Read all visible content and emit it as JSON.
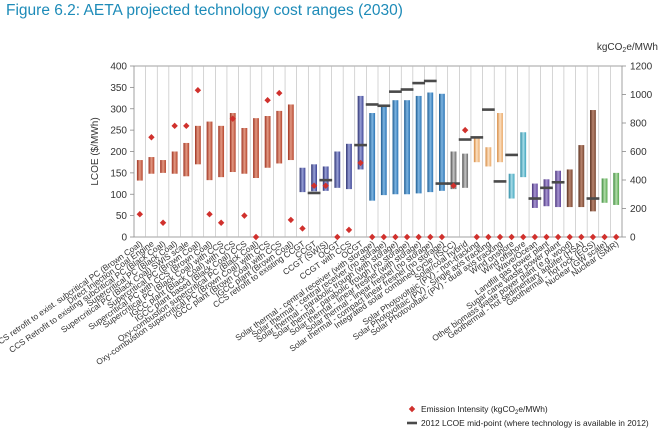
{
  "chart_data": {
    "type": "bar",
    "title": "Figure 6.2: AETA projected technology cost ranges (2030)",
    "ylabel_left": "LCOE ($/MWh)",
    "ylabel_right_parts": [
      "kgCO",
      "2",
      "e/MWh"
    ],
    "ylim_left": [
      0,
      400
    ],
    "ylim_right": [
      0,
      1200
    ],
    "yticks_left": [
      "0",
      "50",
      "100",
      "150",
      "200",
      "250",
      "300",
      "350",
      "400"
    ],
    "yticks_right": [
      "0",
      "200",
      "400",
      "600",
      "800",
      "1000",
      "1200"
    ],
    "grid": "vertical lines between categories",
    "legend_position": "bottom-center",
    "legend": {
      "emission_parts": [
        "Emission Intensity (kgCO",
        "2",
        "e/MWh)"
      ],
      "midpoint": "2012 LCOE mid-point (where technology is available in 2012)"
    },
    "categories": [
      "CCS retrofit to exist. subcritical PC (Brown Coal)",
      "Direct Injection Coal Engine",
      "CCS Retrofit to existing subcritical PC (Black Coal)",
      "Supercritical PC (Black Coal)",
      "Supercritical PC (Black Coal) SWIS scale",
      "Supercritical PC (Brown Coal)",
      "Supercritical PC with CCS (Brown Coal)",
      "Supercritical PC (Black Coal) with CCS",
      "IGCC plant (Black Coal) with CCS",
      "IGCC plant based (Black Coal) CCS",
      "Oxy-combustion supercritical PC (Black Coal)",
      "Oxy-combustion supercritical PC (Brown Coal) with CCS",
      "IGCC plant (Brown Coal) with CCS",
      "IGCC plant (Brown Coal)",
      "CCS retrofit to existing CCGT",
      "CCGT",
      "CCGT (SWIS)",
      "OCGT",
      "CCGT with CCS",
      "OCGT ",
      "Solar thermal - central receiver (with storage)",
      "Solar thermal - central receiver (no storage)",
      "Solar thermal - parabolic trough (with storage)",
      "Solar thermal - parabolic trough (no storage)",
      "Solar thermal - linear fresnel (with storage)",
      "Solar thermal - linear fresnel (no storage)",
      "Solar thermal - compact linear fresnel (no storage)",
      "Integrated solar combined cycle (ISCC)",
      "Solar/coal hybrid",
      "Solar Photovoltaic (PV) - non-tracking",
      "Solar Photovoltaic (PV) - Single axis tracking",
      "Solar Photovoltaic (PV) - dual axis tracking",
      "Wind onshore",
      "Wind offshore",
      "Wave/Ocean",
      "Landfill gas power plant",
      "Sugar cane waste power plant",
      "Other biomass waste power plant (e.g. wood)",
      "Geothermal - hot sedimentary aquifer (HSA)",
      "Geothermal - hot rock (EGS)",
      "Nuclear (GW scale)",
      "Nuclear (SMR)"
    ],
    "series": [
      {
        "name": "LCOE range ($/MWh)",
        "low": [
          132,
          148,
          150,
          148,
          142,
          170,
          133,
          140,
          152,
          148,
          138,
          162,
          172,
          180,
          105,
          107,
          108,
          115,
          112,
          158,
          85,
          98,
          100,
          100,
          102,
          105,
          108,
          112,
          115,
          175,
          165,
          175,
          90,
          140,
          68,
          72,
          70,
          70,
          70,
          60,
          80,
          75
        ],
        "high": [
          180,
          187,
          180,
          200,
          220,
          260,
          270,
          260,
          290,
          255,
          278,
          283,
          295,
          310,
          162,
          170,
          165,
          200,
          218,
          330,
          290,
          305,
          320,
          320,
          330,
          338,
          335,
          200,
          195,
          235,
          210,
          290,
          148,
          245,
          125,
          135,
          155,
          158,
          215,
          297,
          137,
          150
        ]
      },
      {
        "name": "Emission Intensity (kgCO2e/MWh)",
        "values": [
          160,
          700,
          100,
          780,
          780,
          1030,
          160,
          100,
          830,
          150,
          0,
          960,
          1010,
          120,
          60,
          360,
          360,
          0,
          50,
          520,
          0,
          0,
          0,
          0,
          0,
          0,
          0,
          360,
          750,
          0,
          0,
          0,
          0,
          0,
          0,
          0,
          0,
          0,
          0,
          0,
          0,
          0
        ]
      },
      {
        "name": "2012 LCOE mid-point",
        "values": [
          null,
          null,
          null,
          null,
          null,
          null,
          null,
          null,
          null,
          null,
          null,
          null,
          null,
          null,
          null,
          103,
          133,
          null,
          null,
          215,
          310,
          307,
          340,
          345,
          360,
          365,
          125,
          125,
          228,
          233,
          298,
          130,
          192,
          null,
          90,
          115,
          128,
          null,
          null,
          90,
          null,
          null
        ]
      }
    ]
  }
}
